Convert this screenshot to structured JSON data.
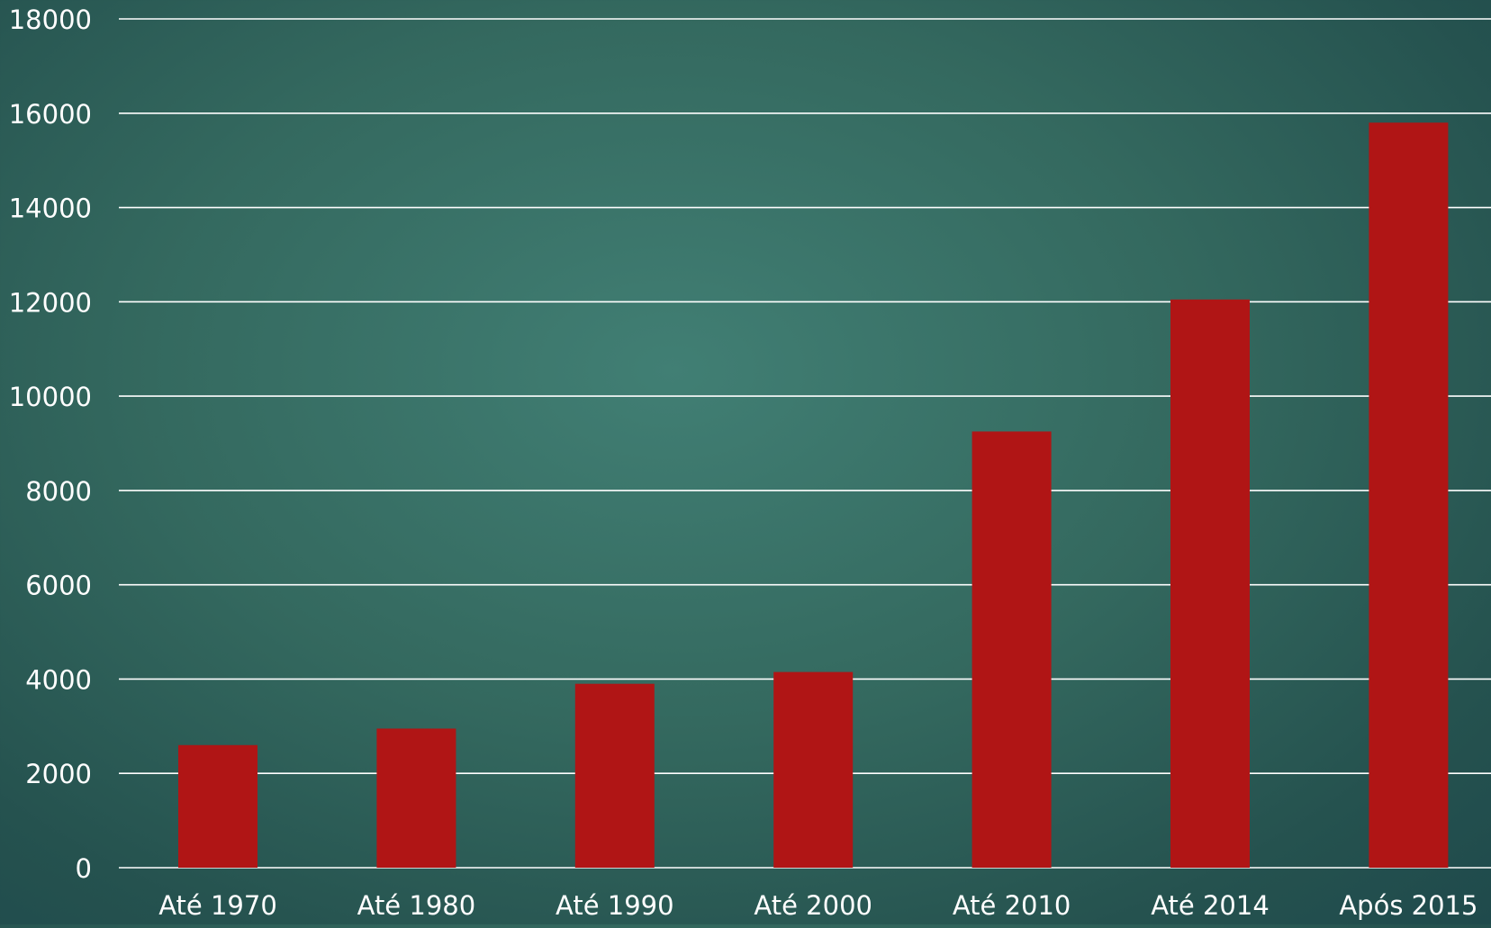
{
  "colors": {
    "bar": "#b01515",
    "gridline": "#ffffff",
    "text": "#ffffff"
  },
  "chart_data": {
    "type": "bar",
    "categories": [
      "Até 1970",
      "Até 1980",
      "Até 1990",
      "Até 2000",
      "Até 2010",
      "Até 2014",
      "Após 2015"
    ],
    "values": [
      2600,
      2950,
      3900,
      4150,
      9250,
      12050,
      15800
    ],
    "ylim": [
      0,
      18000
    ],
    "yticks": [
      0,
      2000,
      4000,
      6000,
      8000,
      10000,
      12000,
      14000,
      16000,
      18000
    ],
    "grid": true,
    "legend": "none"
  }
}
